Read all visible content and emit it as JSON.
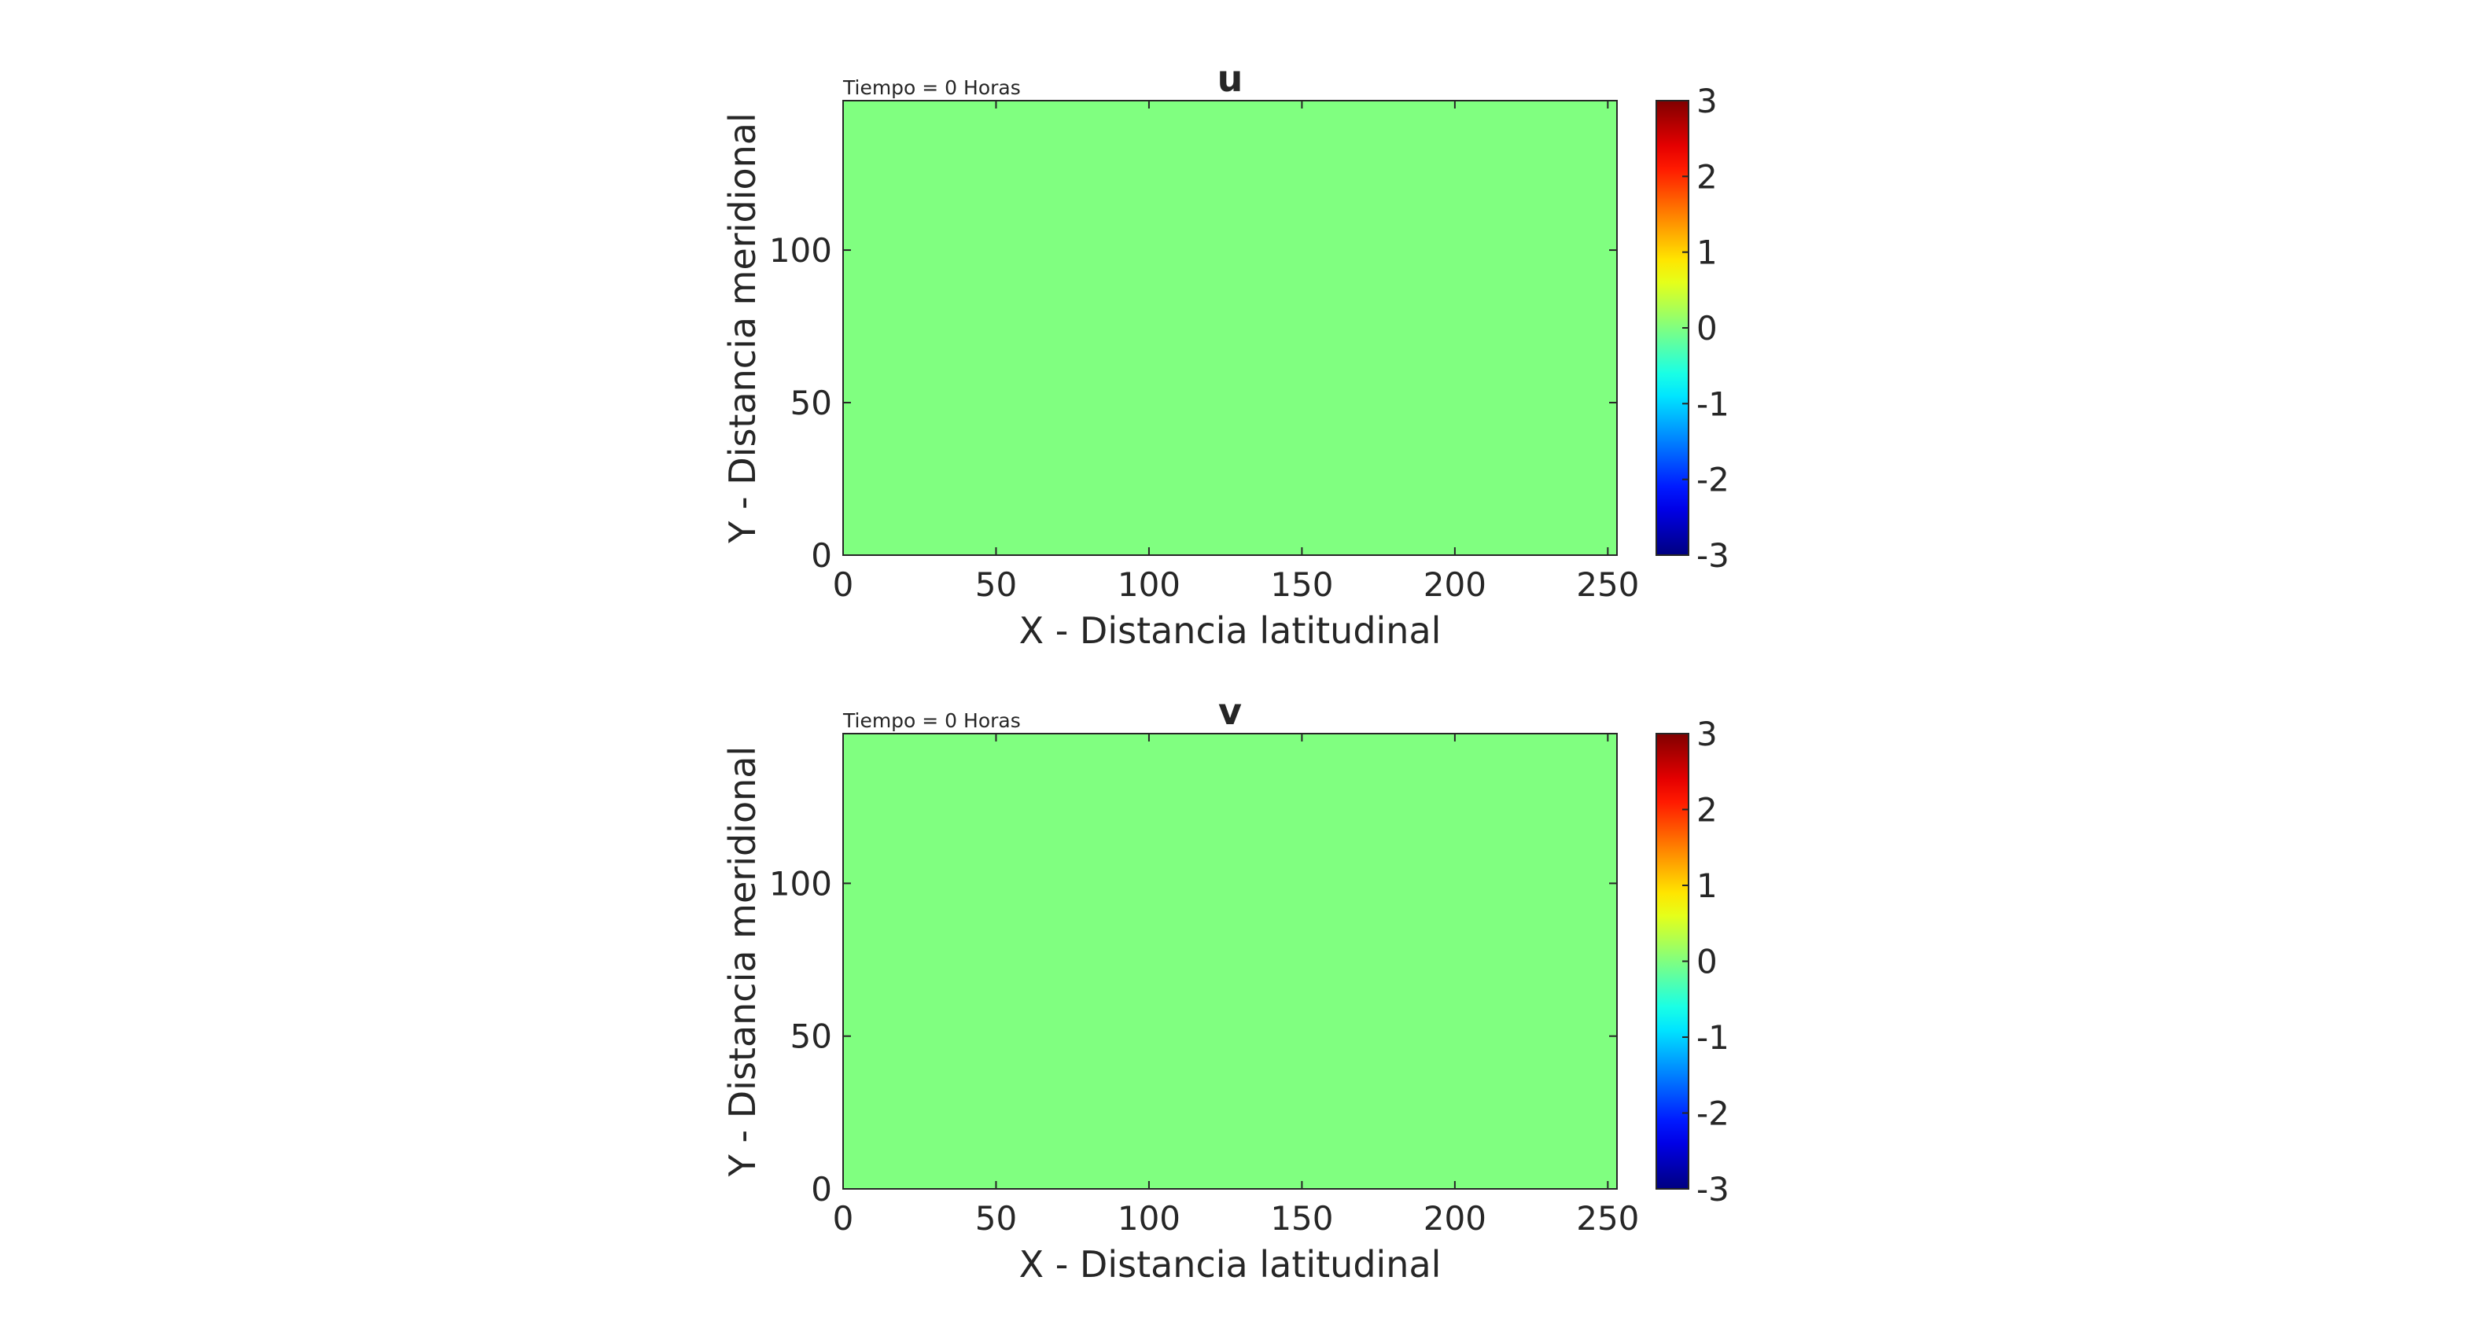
{
  "chart_data": [
    {
      "type": "heatmap",
      "title": "u",
      "subtitle": "Tiempo = 0 Horas",
      "xlabel": "X - Distancia latitudinal",
      "ylabel": "Y - Distancia meridional",
      "xlim": [
        0,
        253
      ],
      "ylim": [
        0,
        149
      ],
      "xticks": [
        0,
        50,
        100,
        150,
        200,
        250
      ],
      "yticks": [
        0,
        50,
        100
      ],
      "field_value": 0,
      "field_color": "#80FF80",
      "colorbar": {
        "colormap": "jet",
        "clim": [
          -3,
          3
        ],
        "ticks": [
          3,
          2,
          1,
          0,
          -1,
          -2,
          -3
        ],
        "tick_labels": [
          "3",
          "2",
          "1",
          "0",
          "-1",
          "-2",
          "-3"
        ]
      }
    },
    {
      "type": "heatmap",
      "title": "v",
      "subtitle": "Tiempo = 0 Horas",
      "xlabel": "X - Distancia latitudinal",
      "ylabel": "Y - Distancia meridional",
      "xlim": [
        0,
        253
      ],
      "ylim": [
        0,
        149
      ],
      "xticks": [
        0,
        50,
        100,
        150,
        200,
        250
      ],
      "yticks": [
        0,
        50,
        100
      ],
      "field_value": 0,
      "field_color": "#80FF80",
      "colorbar": {
        "colormap": "jet",
        "clim": [
          -3,
          3
        ],
        "ticks": [
          3,
          2,
          1,
          0,
          -1,
          -2,
          -3
        ],
        "tick_labels": [
          "3",
          "2",
          "1",
          "0",
          "-1",
          "-2",
          "-3"
        ]
      }
    }
  ],
  "colors": {
    "axis": "#262626",
    "background": "#ffffff"
  }
}
